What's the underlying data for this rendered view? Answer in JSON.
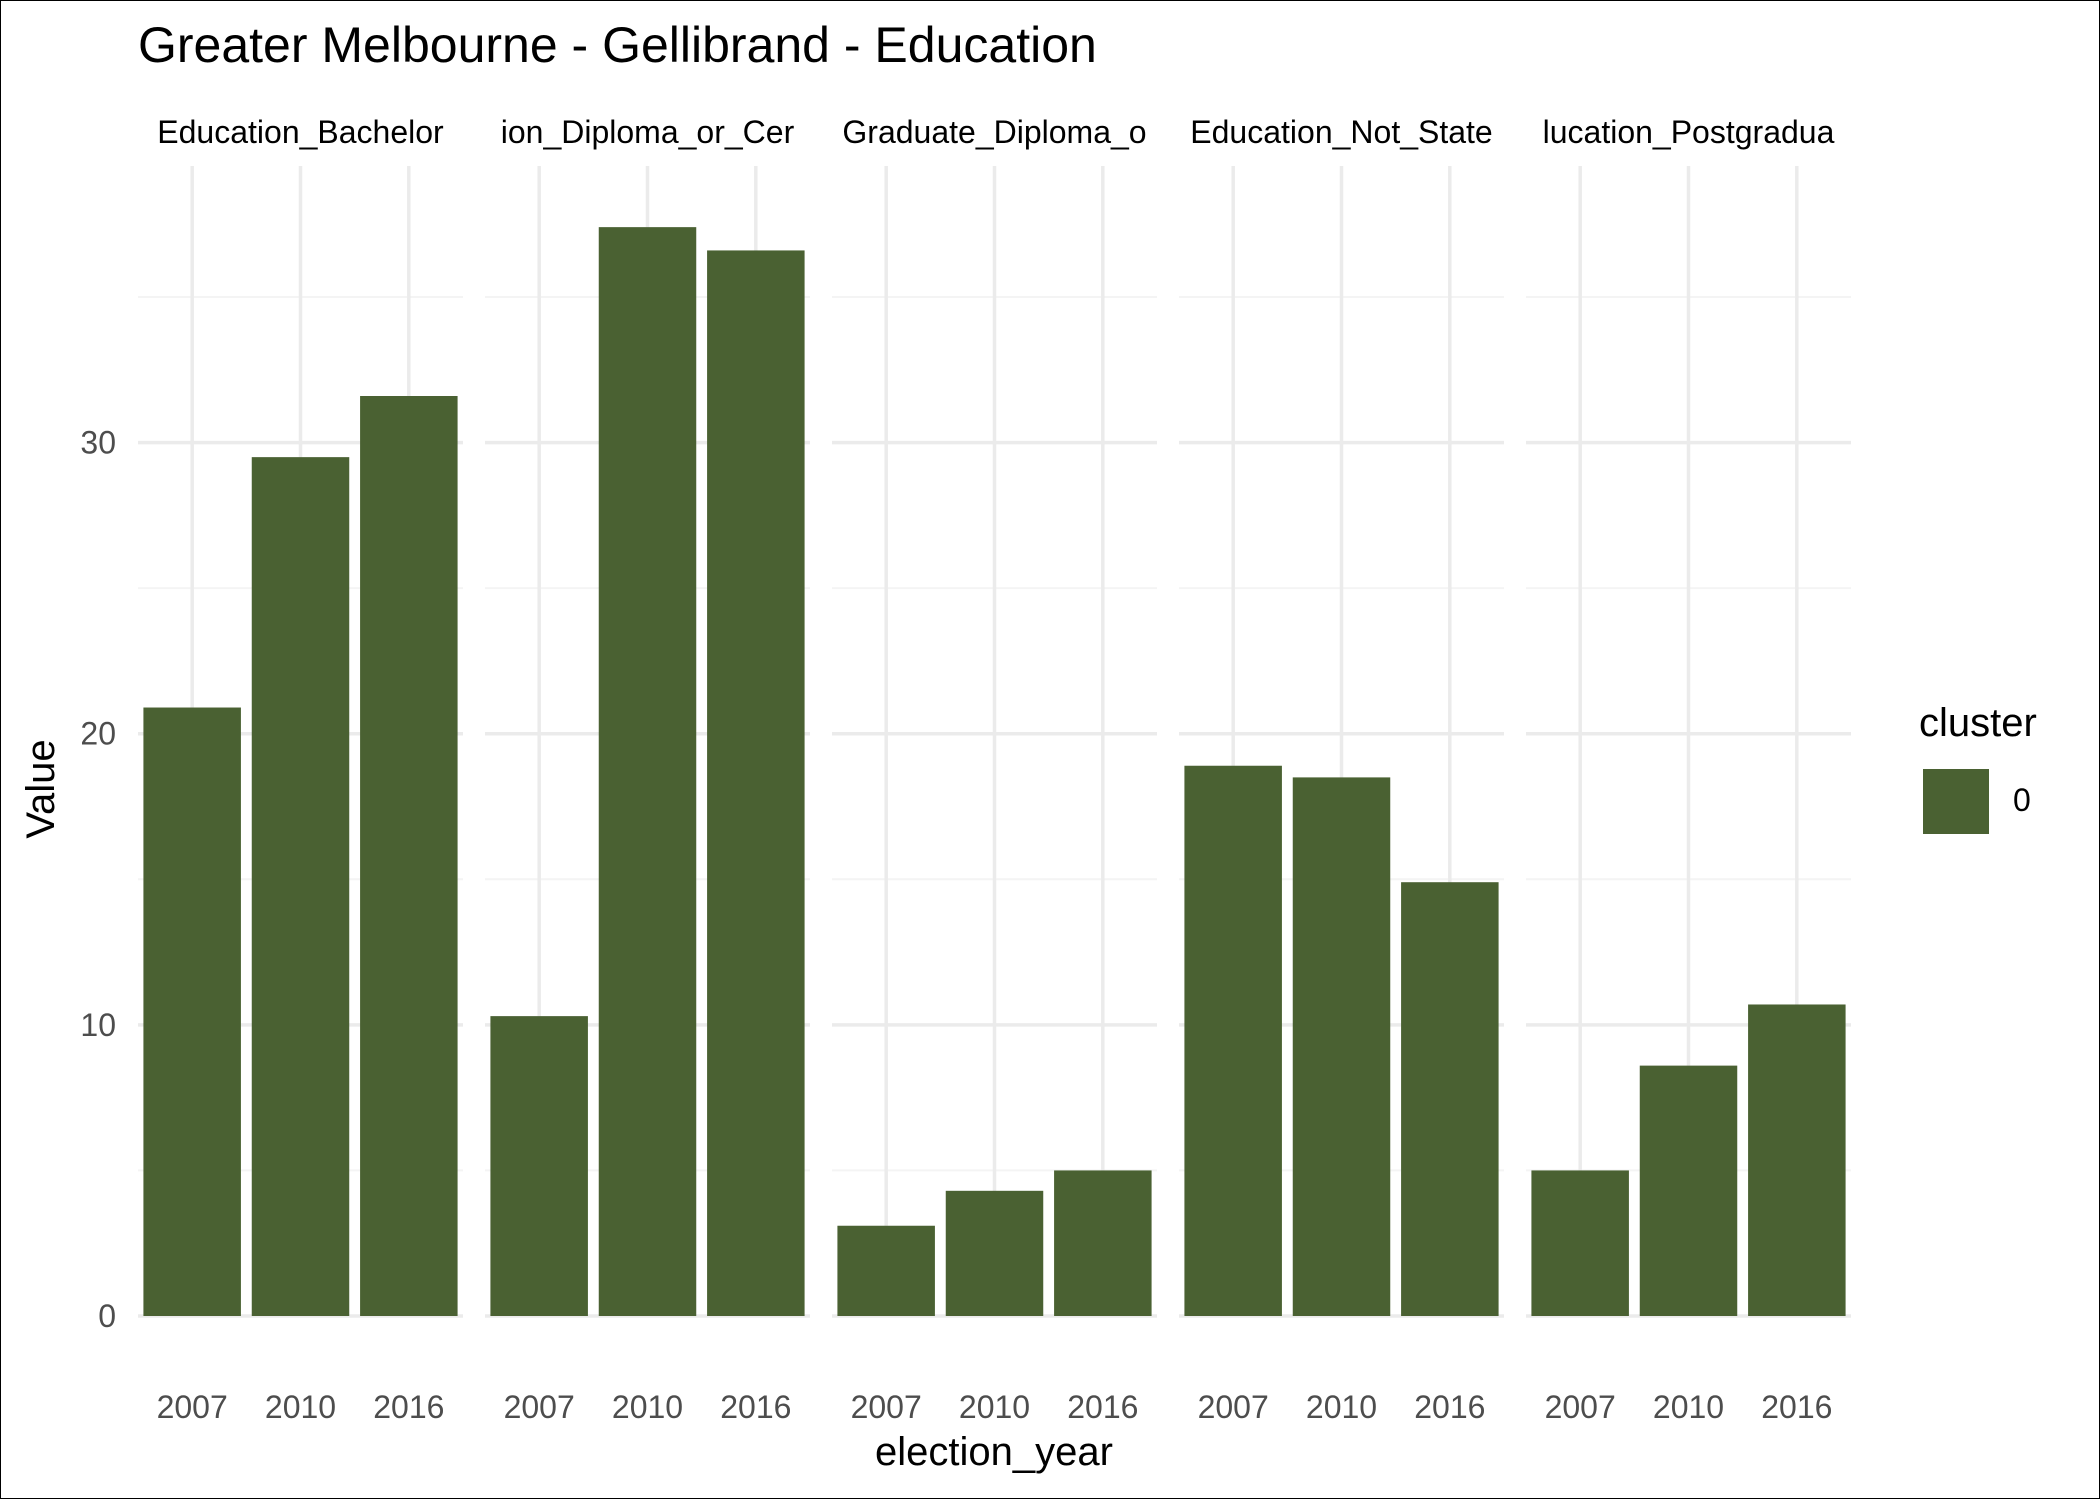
{
  "chart_data": {
    "type": "bar",
    "title": "Greater Melbourne - Gellibrand - Education",
    "xlabel": "election_year",
    "ylabel": "Value",
    "ylim": [
      0,
      39.5
    ],
    "y_ticks": [
      0,
      10,
      20,
      30
    ],
    "grid": true,
    "categories": [
      "2007",
      "2010",
      "2016"
    ],
    "facets": [
      {
        "label": "Education_Bachelor",
        "values": [
          20.9,
          29.5,
          31.6
        ]
      },
      {
        "label": "ion_Diploma_or_Cer",
        "values": [
          10.3,
          37.4,
          36.6
        ]
      },
      {
        "label": "Graduate_Diploma_o",
        "values": [
          3.1,
          4.3,
          5.0
        ]
      },
      {
        "label": "Education_Not_State",
        "values": [
          18.9,
          18.5,
          14.9
        ]
      },
      {
        "label": "lucation_Postgradua",
        "values": [
          5.0,
          8.6,
          10.7
        ]
      }
    ],
    "legend": {
      "title": "cluster",
      "placement": "right",
      "entries": [
        {
          "label": "0",
          "color": "#4a6132"
        }
      ]
    },
    "colors": {
      "bar": "#4a6132",
      "grid_major": "#ebebeb",
      "grid_minor": "#f4f4f4",
      "tick_text": "#4d4d4d",
      "text": "#000000"
    }
  }
}
